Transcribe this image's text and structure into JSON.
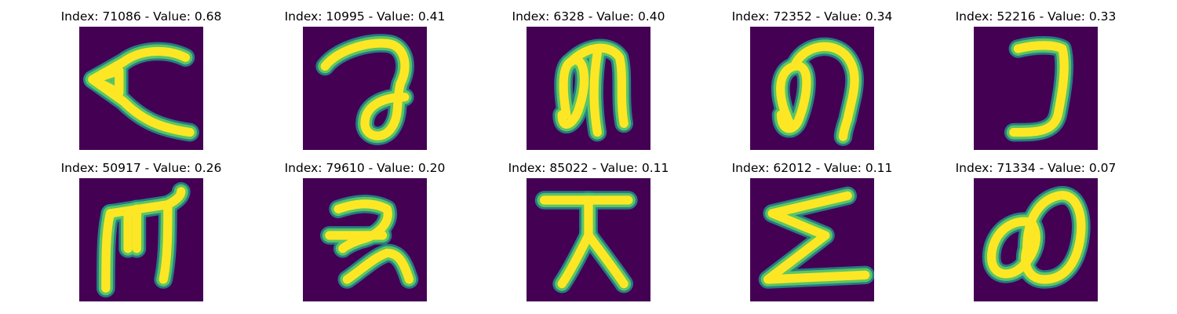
{
  "colors": {
    "background": "#440154",
    "stroke_edge": "#21918c",
    "stroke_mid": "#5ec962",
    "stroke_core": "#fde725"
  },
  "panels": [
    {
      "title": "Index: 71086 - Value: 0.68",
      "glyph": "arrowhead-c"
    },
    {
      "title": "Index: 10995 - Value: 0.41",
      "glyph": "hook-loop"
    },
    {
      "title": "Index: 6328 - Value: 0.40",
      "glyph": "loop-m"
    },
    {
      "title": "Index: 72352 - Value: 0.34",
      "glyph": "loop-n"
    },
    {
      "title": "Index: 52216 - Value: 0.33",
      "glyph": "reverse-j"
    },
    {
      "title": "Index: 50917 - Value: 0.26",
      "glyph": "m-shape"
    },
    {
      "title": "Index: 79610 - Value: 0.20",
      "glyph": "z-tail"
    },
    {
      "title": "Index: 85022 - Value: 0.11",
      "glyph": "t-legs"
    },
    {
      "title": "Index: 62012 - Value: 0.11",
      "glyph": "sigma"
    },
    {
      "title": "Index: 71334 - Value: 0.07",
      "glyph": "double-loop"
    }
  ]
}
